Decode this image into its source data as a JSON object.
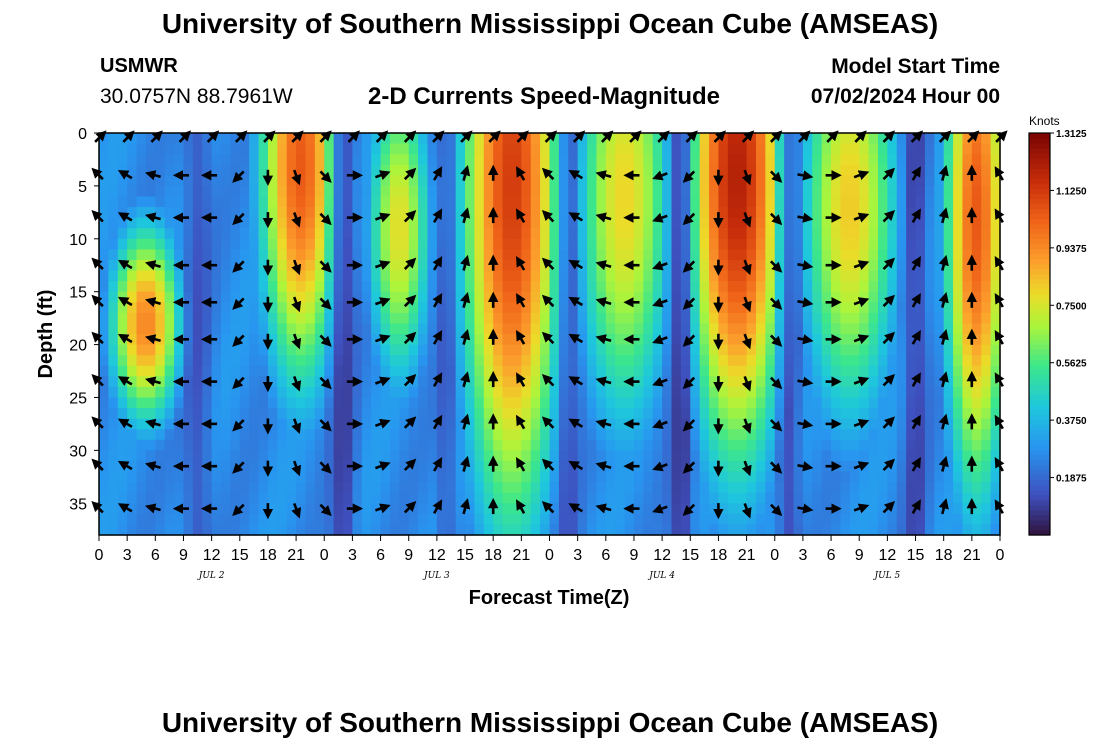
{
  "header": {
    "title": "University of Southern Mississippi Ocean Cube (AMSEAS)",
    "station": "USMWR",
    "coords": "30.0757N  88.7961W",
    "subtitle": "2-D Currents Speed-Magnitude",
    "model_start_label": "Model Start Time",
    "model_start_value": "07/02/2024 Hour 00"
  },
  "footer": {
    "title": "University of Southern Mississippi Ocean Cube (AMSEAS)"
  },
  "chart_data": {
    "type": "heatmap",
    "title": "2-D Currents Speed-Magnitude",
    "xlabel": "Forecast Time(Z)",
    "ylabel": "Depth (ft)",
    "x_hours_range": [
      0,
      96
    ],
    "x_tick_step_hours": 3,
    "x_tick_labels": [
      "0",
      "3",
      "6",
      "9",
      "12",
      "15",
      "18",
      "21",
      "0",
      "3",
      "6",
      "9",
      "12",
      "15",
      "18",
      "21",
      "0",
      "3",
      "6",
      "9",
      "12",
      "15",
      "18",
      "21",
      "0",
      "3",
      "6",
      "9",
      "12",
      "15",
      "18",
      "21",
      "0"
    ],
    "date_labels": [
      {
        "label": "JUL 2",
        "hour": 12
      },
      {
        "label": "JUL 3",
        "hour": 36
      },
      {
        "label": "JUL 4",
        "hour": 60
      },
      {
        "label": "JUL 5",
        "hour": 84
      }
    ],
    "y_range_ft": [
      0,
      38
    ],
    "y_ticks": [
      0,
      5,
      10,
      15,
      20,
      25,
      30,
      35
    ],
    "colorbar": {
      "label": "Knots",
      "range": [
        0,
        1.3125
      ],
      "ticks": [
        "1.3125",
        "1.1250",
        "0.9375",
        "0.7500",
        "0.5625",
        "0.3750",
        "0.1875"
      ],
      "tick_values": [
        1.3125,
        1.125,
        0.9375,
        0.75,
        0.5625,
        0.375,
        0.1875
      ]
    },
    "speed_features": [
      {
        "center_hour": 5,
        "center_depth_ft": 18,
        "hour_halfwidth": 4,
        "depth_halfwidth": 10,
        "peak_knots": 0.95
      },
      {
        "center_hour": 21.5,
        "center_depth_ft": 3,
        "hour_halfwidth": 4.5,
        "depth_halfwidth": 22,
        "peak_knots": 1.05
      },
      {
        "center_hour": 32,
        "center_depth_ft": 9,
        "hour_halfwidth": 3.5,
        "depth_halfwidth": 16,
        "peak_knots": 0.78
      },
      {
        "center_hour": 44,
        "center_depth_ft": 5,
        "hour_halfwidth": 5.5,
        "depth_halfwidth": 34,
        "peak_knots": 1.12
      },
      {
        "center_hour": 56,
        "center_depth_ft": 6,
        "hour_halfwidth": 5.5,
        "depth_halfwidth": 24,
        "peak_knots": 0.8
      },
      {
        "center_hour": 68,
        "center_depth_ft": 4,
        "hour_halfwidth": 5.5,
        "depth_halfwidth": 28,
        "peak_knots": 1.2
      },
      {
        "center_hour": 80,
        "center_depth_ft": 7,
        "hour_halfwidth": 5.5,
        "depth_halfwidth": 22,
        "peak_knots": 0.82
      },
      {
        "center_hour": 93.5,
        "center_depth_ft": 8,
        "hour_halfwidth": 3.5,
        "depth_halfwidth": 28,
        "peak_knots": 1.05
      }
    ],
    "low_speed_bands": [
      {
        "center_hour": 10.5,
        "hour_halfwidth": 1.5,
        "factor": 0.55
      },
      {
        "center_hour": 26,
        "hour_halfwidth": 1.3,
        "factor": 0.35
      },
      {
        "center_hour": 37,
        "hour_halfwidth": 1.0,
        "factor": 0.6
      },
      {
        "center_hour": 50,
        "hour_halfwidth": 1.2,
        "factor": 0.55
      },
      {
        "center_hour": 62,
        "hour_halfwidth": 1.2,
        "factor": 0.3
      },
      {
        "center_hour": 73.5,
        "hour_halfwidth": 1.2,
        "factor": 0.45
      },
      {
        "center_hour": 87,
        "hour_halfwidth": 1.2,
        "factor": 0.4
      }
    ],
    "base_speed_knots": 0.27,
    "vector_hours": [
      0,
      3,
      6,
      9,
      12,
      15,
      18,
      21,
      24,
      27,
      30,
      33,
      36,
      39,
      42,
      45,
      48,
      51,
      54,
      57,
      60,
      63,
      66,
      69,
      72,
      75,
      78,
      81,
      84,
      87,
      90,
      93,
      96
    ],
    "vector_depths_ft": [
      0,
      4,
      8,
      12.5,
      16,
      19.5,
      23.5,
      27.5,
      31.5,
      35.5
    ],
    "vector_directions_deg": [
      [
        45,
        45,
        45,
        45,
        45,
        45,
        45,
        45,
        45,
        45,
        45,
        45,
        45,
        45,
        45,
        45,
        45,
        45,
        45,
        45,
        45,
        45,
        45,
        45,
        45,
        45,
        45,
        45,
        45,
        45,
        45,
        45,
        45
      ],
      [
        315,
        300,
        285,
        270,
        270,
        225,
        180,
        160,
        135,
        90,
        70,
        45,
        30,
        15,
        0,
        330,
        315,
        300,
        285,
        270,
        250,
        225,
        180,
        160,
        135,
        100,
        90,
        70,
        45,
        30,
        15,
        0,
        330
      ],
      [
        315,
        300,
        285,
        270,
        270,
        225,
        180,
        160,
        135,
        90,
        70,
        45,
        30,
        15,
        0,
        330,
        315,
        300,
        285,
        270,
        250,
        225,
        180,
        160,
        135,
        100,
        90,
        70,
        45,
        30,
        15,
        0,
        330
      ],
      [
        315,
        300,
        285,
        270,
        270,
        225,
        180,
        160,
        135,
        90,
        70,
        45,
        30,
        15,
        0,
        330,
        315,
        300,
        285,
        270,
        250,
        225,
        180,
        160,
        135,
        100,
        90,
        70,
        45,
        30,
        15,
        0,
        330
      ],
      [
        315,
        300,
        285,
        270,
        270,
        225,
        180,
        160,
        135,
        90,
        70,
        45,
        30,
        15,
        0,
        330,
        315,
        300,
        285,
        270,
        250,
        225,
        180,
        160,
        135,
        100,
        90,
        70,
        45,
        30,
        15,
        0,
        330
      ],
      [
        315,
        300,
        285,
        270,
        270,
        225,
        180,
        160,
        135,
        90,
        70,
        45,
        30,
        15,
        0,
        330,
        315,
        300,
        285,
        270,
        250,
        225,
        180,
        160,
        135,
        100,
        90,
        70,
        45,
        30,
        15,
        0,
        330
      ],
      [
        315,
        300,
        285,
        270,
        270,
        225,
        180,
        160,
        135,
        90,
        70,
        45,
        30,
        15,
        0,
        330,
        315,
        300,
        285,
        270,
        250,
        225,
        180,
        160,
        135,
        100,
        90,
        70,
        45,
        30,
        15,
        0,
        330
      ],
      [
        315,
        300,
        285,
        270,
        270,
        225,
        180,
        160,
        135,
        90,
        70,
        45,
        30,
        15,
        0,
        330,
        315,
        300,
        285,
        270,
        250,
        225,
        180,
        160,
        135,
        100,
        90,
        70,
        45,
        30,
        15,
        0,
        330
      ],
      [
        315,
        300,
        285,
        270,
        270,
        225,
        180,
        160,
        135,
        90,
        70,
        45,
        30,
        15,
        0,
        330,
        315,
        300,
        285,
        270,
        250,
        225,
        180,
        160,
        135,
        100,
        90,
        70,
        45,
        30,
        15,
        0,
        330
      ],
      [
        315,
        300,
        285,
        270,
        270,
        225,
        180,
        160,
        135,
        90,
        70,
        45,
        30,
        15,
        0,
        330,
        315,
        300,
        285,
        270,
        250,
        225,
        180,
        160,
        135,
        100,
        90,
        70,
        45,
        30,
        15,
        0,
        330
      ]
    ]
  }
}
